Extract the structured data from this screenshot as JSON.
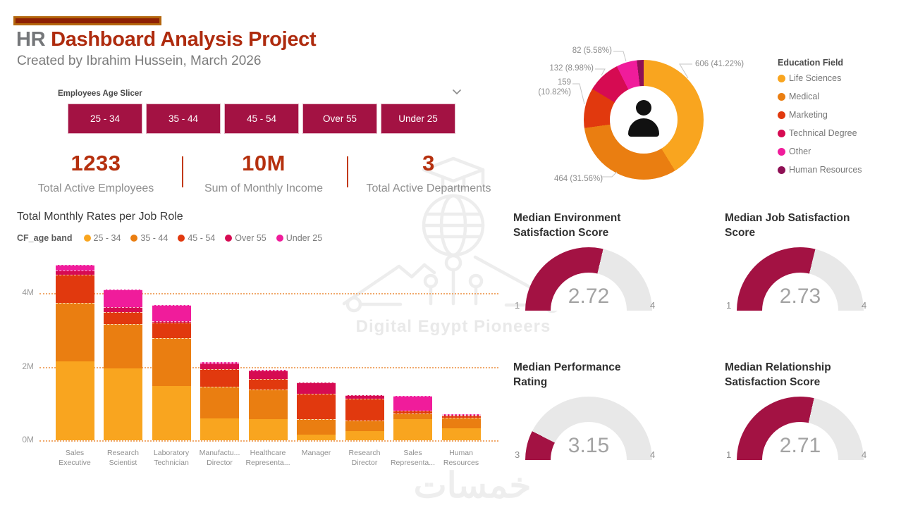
{
  "header": {
    "title_prefix": "HR",
    "title_rest": "Dashboard Analysis Project",
    "subtitle": "Created by Ibrahim Hussein, March 2026",
    "accent_fill": "#8E2104",
    "accent_border": "#B4660D",
    "title_color": "#AE2B0E"
  },
  "slicer": {
    "label": "Employees Age Slicer",
    "buttons": [
      "25 - 34",
      "35 - 44",
      "45 - 54",
      "Over 55",
      "Under 25"
    ],
    "button_color": "#A31243"
  },
  "kpis": [
    {
      "value": "1233",
      "label": "Total Active Employees"
    },
    {
      "value": "10M",
      "label": "Sum of Monthly Income"
    },
    {
      "value": "3",
      "label": "Total Active Departments"
    }
  ],
  "watermark": {
    "brand": "Digital Egypt Pioneers",
    "bottom_text": "خمسات"
  },
  "palette": {
    "age_25_34": "#F9A51F",
    "age_35_44": "#EA7E11",
    "age_45_54": "#E1390E",
    "age_over_55": "#D60B52",
    "age_under_25": "#F01C9B",
    "dark_magenta": "#8E1055",
    "gauge_fill": "#A31243",
    "gauge_track": "#E8E8E8"
  },
  "chart_data": [
    {
      "type": "pie",
      "title": "Education Field",
      "legend_position": "right",
      "slices": [
        {
          "label": "Life Sciences",
          "value": 606,
          "pct": 41.22,
          "data_label": "606 (41.22%)",
          "color": "#F9A51F"
        },
        {
          "label": "Medical",
          "value": 464,
          "pct": 31.56,
          "data_label": "464 (31.56%)",
          "color": "#EA7E11"
        },
        {
          "label": "Marketing",
          "value": 159,
          "pct": 10.82,
          "data_label": "159 (10.82%)",
          "color": "#E1390E"
        },
        {
          "label": "Technical Degree",
          "value": 132,
          "pct": 8.98,
          "data_label": "132 (8.98%)",
          "color": "#D60B52"
        },
        {
          "label": "Other",
          "value": 82,
          "pct": 5.58,
          "data_label": "82 (5.58%)",
          "color": "#F01C9B"
        },
        {
          "label": "Human Resources",
          "value": 27,
          "pct": 1.84,
          "data_label": "",
          "color": "#8E1055"
        }
      ]
    },
    {
      "type": "bar",
      "stacked": true,
      "title": "Total Monthly Rates per Job Role",
      "legend_title": "CF_age band",
      "unit": "M",
      "ylim": [
        0,
        5
      ],
      "yticks": [
        {
          "label": "0M",
          "value": 0
        },
        {
          "label": "2M",
          "value": 2
        },
        {
          "label": "4M",
          "value": 4
        }
      ],
      "categories": [
        [
          "Sales",
          "Executive"
        ],
        [
          "Research",
          "Scientist"
        ],
        [
          "Laboratory",
          "Technician"
        ],
        [
          "Manufactu...",
          "Director"
        ],
        [
          "Healthcare",
          "Representa..."
        ],
        [
          "Manager"
        ],
        [
          "Research",
          "Director"
        ],
        [
          "Sales",
          "Representa..."
        ],
        [
          "Human",
          "Resources"
        ]
      ],
      "series": [
        {
          "name": "25 - 34",
          "color": "#F9A51F",
          "values": [
            2.15,
            1.95,
            1.48,
            0.59,
            0.57,
            0.16,
            0.24,
            0.57,
            0.32
          ]
        },
        {
          "name": "35 - 44",
          "color": "#EA7E11",
          "values": [
            1.58,
            1.21,
            1.3,
            0.87,
            0.81,
            0.41,
            0.29,
            0.15,
            0.29
          ]
        },
        {
          "name": "45 - 54",
          "color": "#E1390E",
          "values": [
            0.77,
            0.33,
            0.41,
            0.47,
            0.29,
            0.69,
            0.6,
            0.09,
            0.06
          ]
        },
        {
          "name": "Over 55",
          "color": "#D60B52",
          "values": [
            0.11,
            0.13,
            0.05,
            0.16,
            0.23,
            0.31,
            0.09,
            0.0,
            0.02
          ]
        },
        {
          "name": "Under 25",
          "color": "#F01C9B",
          "values": [
            0.16,
            0.48,
            0.43,
            0.03,
            0.02,
            0.0,
            0.0,
            0.39,
            0.02
          ]
        }
      ]
    },
    {
      "type": "gauge",
      "title_lines": [
        "Median Environment",
        "Satisfaction Score"
      ],
      "title": "Median Environment Satisfaction Score",
      "value": 2.72,
      "min": 1,
      "max": 4
    },
    {
      "type": "gauge",
      "title_lines": [
        "Median Job Satisfaction",
        "Score"
      ],
      "title": "Median Job Satisfaction Score",
      "value": 2.73,
      "min": 1,
      "max": 4
    },
    {
      "type": "gauge",
      "title_lines": [
        "Median Performance",
        "Rating"
      ],
      "title": "Median Performance Rating",
      "value": 3.15,
      "min": 3,
      "max": 4
    },
    {
      "type": "gauge",
      "title_lines": [
        "Median Relationship",
        "Satisfaction Score"
      ],
      "title": "Median Relationship Satisfaction Score",
      "value": 2.71,
      "min": 1,
      "max": 4
    }
  ]
}
